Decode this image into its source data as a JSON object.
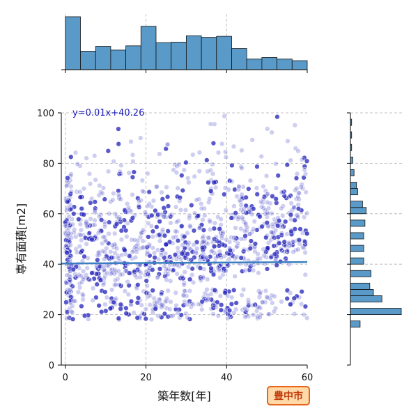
{
  "chart_data": {
    "type": "scatter",
    "xlabel": "築年数[年]",
    "ylabel": "専有面積[m2]",
    "xlim": [
      -1,
      60
    ],
    "ylim": [
      0,
      100
    ],
    "x_ticks": [
      0,
      20,
      40,
      60
    ],
    "y_ticks": [
      0,
      20,
      40,
      60,
      80,
      100
    ],
    "grid": true,
    "regression": {
      "label": "y=0.01x+40.26",
      "slope": 0.01,
      "intercept": 40.26,
      "color": "#3a7fc0"
    },
    "badge": {
      "label": "豊中市",
      "fill": "#ffd9a8",
      "stroke": "#e8641a",
      "text_color": "#c0390b"
    },
    "point_color": "#2222bb",
    "bar_color": "#5a9ac8",
    "x_hist": {
      "bin_edges": [
        0,
        3.75,
        7.5,
        11.25,
        15,
        18.75,
        22.5,
        26.25,
        30,
        33.75,
        37.5,
        41.25,
        45,
        48.75,
        52.5,
        56.25,
        60
      ],
      "counts": [
        100,
        35,
        44,
        37,
        45,
        82,
        51,
        52,
        64,
        61,
        63,
        40,
        20,
        23,
        20,
        17
      ]
    },
    "y_hist": {
      "bin_edges": [
        15,
        17.5,
        20,
        22.5,
        25,
        27.5,
        30,
        32.5,
        35,
        37.5,
        40,
        42.5,
        45,
        47.5,
        50,
        52.5,
        55,
        57.5,
        60,
        62.5,
        65,
        67.5,
        70,
        72.5,
        75,
        77.5,
        80,
        82.5,
        85,
        87.5,
        90,
        92.5,
        95,
        97.5,
        100
      ],
      "counts": [
        8,
        0,
        42,
        0,
        26,
        19,
        16,
        0,
        17,
        0,
        11,
        0,
        11,
        0,
        11,
        0,
        12,
        0,
        13,
        10,
        0,
        6,
        5,
        0,
        3,
        0,
        2,
        0,
        1,
        0,
        1,
        0,
        1,
        0
      ]
    },
    "scatter_profile": [
      [
        0,
        28,
        0.3
      ],
      [
        5,
        30,
        0.35
      ],
      [
        10,
        28,
        0.3
      ],
      [
        15,
        28,
        0.35
      ],
      [
        20,
        30,
        0.55
      ],
      [
        25,
        32,
        0.45
      ],
      [
        30,
        30,
        0.45
      ],
      [
        35,
        32,
        0.45
      ],
      [
        40,
        32,
        0.5
      ],
      [
        45,
        34,
        0.4
      ],
      [
        50,
        36,
        0.3
      ],
      [
        55,
        38,
        0.25
      ],
      [
        60,
        40,
        0.2
      ]
    ]
  }
}
